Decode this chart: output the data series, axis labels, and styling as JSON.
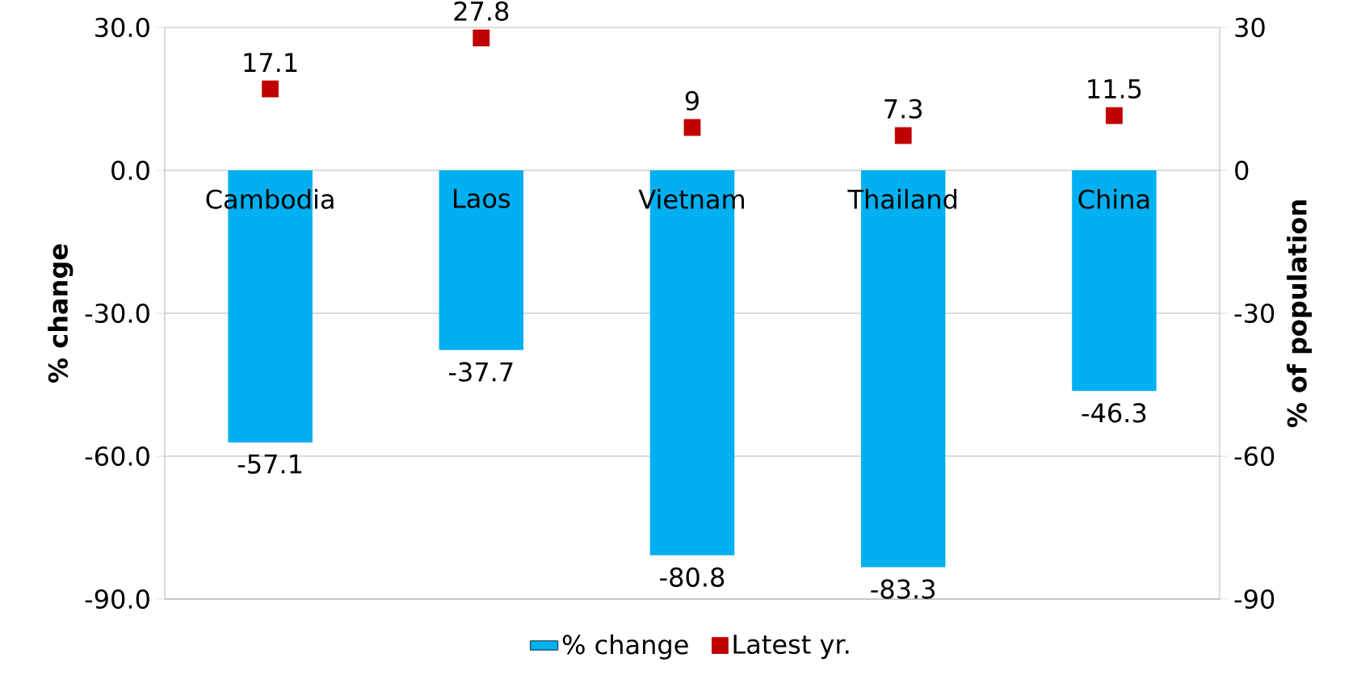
{
  "chart_data": {
    "type": "bar",
    "categories": [
      "Cambodia",
      "Laos",
      "Vietnam",
      "Thailand",
      "China"
    ],
    "series": [
      {
        "name": "% change",
        "color": "#00b0f0",
        "values": [
          -57.1,
          -37.7,
          -80.8,
          -83.3,
          -46.3
        ]
      },
      {
        "name": "Latest yr.",
        "type": "scatter",
        "axis": "y2",
        "marker": "square",
        "color": "#c00000",
        "values": [
          17.1,
          27.8,
          9,
          7.3,
          11.5
        ]
      }
    ],
    "ylabel": "% change",
    "y2label": "% of population",
    "ylim": [
      -90,
      30
    ],
    "yticks": [
      {
        "value": -90,
        "label": "-90.0"
      },
      {
        "value": -60,
        "label": "-60.0"
      },
      {
        "value": -30,
        "label": "-30.0"
      },
      {
        "value": 0,
        "label": "0.0"
      },
      {
        "value": 30,
        "label": "30.0"
      }
    ],
    "y2lim": [
      -90,
      30
    ],
    "y2ticks": [
      -90,
      -60,
      -30,
      0,
      30
    ],
    "data_labels": true,
    "grid": "y",
    "legend": "bottom"
  }
}
